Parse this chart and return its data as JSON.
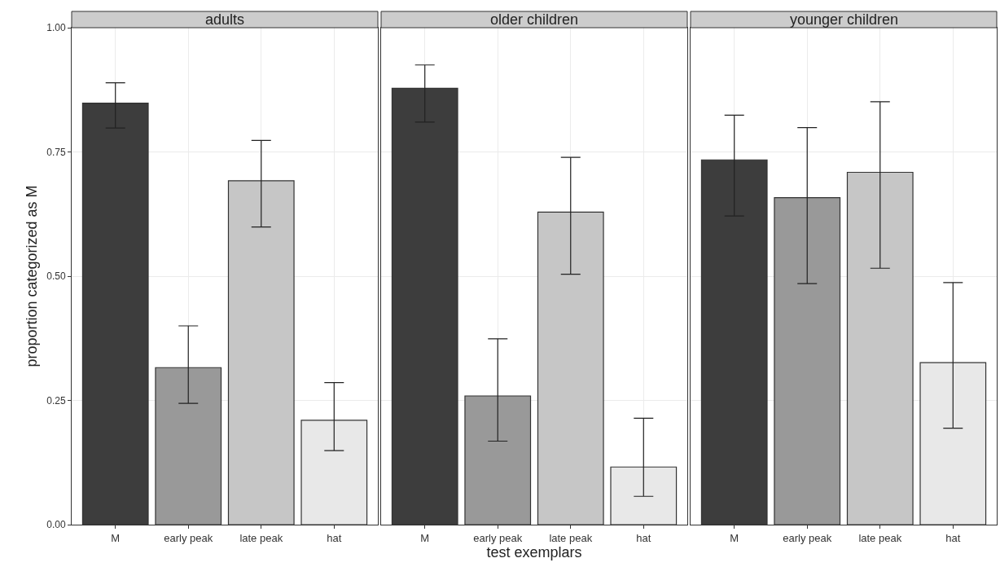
{
  "chart_data": [
    {
      "type": "bar",
      "title": "adults",
      "ylabel": "proportion categorized as M",
      "categories": [
        "M",
        "early peak",
        "late peak",
        "hat"
      ],
      "values": [
        0.848,
        0.316,
        0.692,
        0.21
      ],
      "colors": [
        "#3d3d3d",
        "#999999",
        "#c6c6c6",
        "#e8e8e8"
      ],
      "errors": [
        [
          0.798,
          0.889
        ],
        [
          0.244,
          0.4
        ],
        [
          0.599,
          0.773
        ],
        [
          0.149,
          0.286
        ]
      ],
      "ylim": [
        0,
        1
      ],
      "yticks": [
        {
          "value": 0,
          "label": "0.00"
        },
        {
          "value": 0.25,
          "label": "0.25"
        },
        {
          "value": 0.5,
          "label": "0.50"
        },
        {
          "value": 0.75,
          "label": "0.75"
        },
        {
          "value": 1,
          "label": "1.00"
        }
      ],
      "grid": true
    },
    {
      "type": "bar",
      "title": "older children",
      "xlabel": "test exemplars",
      "categories": [
        "M",
        "early peak",
        "late peak",
        "hat"
      ],
      "values": [
        0.878,
        0.259,
        0.629,
        0.116
      ],
      "colors": [
        "#3d3d3d",
        "#999999",
        "#c6c6c6",
        "#e8e8e8"
      ],
      "errors": [
        [
          0.81,
          0.925
        ],
        [
          0.168,
          0.374
        ],
        [
          0.504,
          0.739
        ],
        [
          0.057,
          0.214
        ]
      ],
      "ylim": [
        0,
        1
      ],
      "yticks": [
        {
          "value": 0,
          "label": null
        },
        {
          "value": 0.25,
          "label": null
        },
        {
          "value": 0.5,
          "label": null
        },
        {
          "value": 0.75,
          "label": null
        },
        {
          "value": 1,
          "label": null
        }
      ],
      "grid": true,
      "tick_labels": "x"
    },
    {
      "type": "bar",
      "title": "younger children",
      "categories": [
        "M",
        "early peak",
        "late peak",
        "hat"
      ],
      "values": [
        0.734,
        0.658,
        0.709,
        0.326
      ],
      "colors": [
        "#3d3d3d",
        "#999999",
        "#c6c6c6",
        "#e8e8e8"
      ],
      "errors": [
        [
          0.621,
          0.824
        ],
        [
          0.485,
          0.799
        ],
        [
          0.516,
          0.851
        ],
        [
          0.194,
          0.487
        ]
      ],
      "ylim": [
        0,
        1
      ],
      "yticks": [
        {
          "value": 0,
          "label": null
        },
        {
          "value": 0.25,
          "label": null
        },
        {
          "value": 0.5,
          "label": null
        },
        {
          "value": 0.75,
          "label": null
        },
        {
          "value": 1,
          "label": null
        }
      ],
      "grid": true,
      "tick_labels": "x"
    }
  ]
}
